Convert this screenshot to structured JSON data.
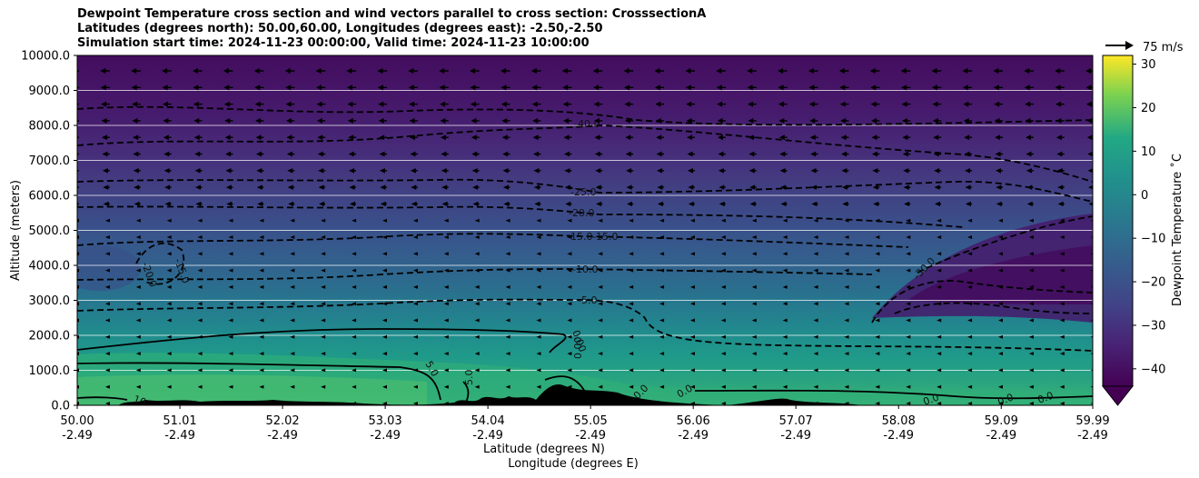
{
  "titles": [
    "Dewpoint Temperature cross section and wind vectors parallel to cross section: CrosssectionA",
    "Latitudes (degrees north): 50.00,60.00, Longitudes (degrees east): -2.50,-2.50",
    "Simulation start time: 2024-11-23 00:00:00, Valid time: 2024-11-23 10:00:00"
  ],
  "quiver_key": "75 m/s",
  "chart_data": {
    "type": "contour",
    "ylabel": "Altitude (meters)",
    "xlabel": "Latitude (degrees N)",
    "xlabel2": "Longitude (degrees E)",
    "ylim": [
      0,
      10000
    ],
    "xlim": [
      50.0,
      59.99
    ],
    "grid": "horizontal",
    "yticks": [
      "0.0",
      "1000.0",
      "2000.0",
      "3000.0",
      "4000.0",
      "5000.0",
      "6000.0",
      "7000.0",
      "8000.0",
      "9000.0",
      "10000.0"
    ],
    "xticks_lat": [
      "50.00",
      "51.01",
      "52.02",
      "53.03",
      "54.04",
      "55.05",
      "56.06",
      "57.07",
      "58.08",
      "59.09",
      "59.99"
    ],
    "xticks_lon": [
      "-2.49",
      "-2.49",
      "-2.49",
      "-2.49",
      "-2.49",
      "-2.49",
      "-2.49",
      "-2.49",
      "-2.49",
      "-2.49",
      "-2.49"
    ],
    "colorbar": {
      "label": "Dewpoint Temperature ˚C",
      "range": [
        -44,
        32
      ],
      "ticks": [
        "30",
        "20",
        "10",
        "0",
        "−10",
        "−20",
        "−30",
        "−40"
      ],
      "extend": "min"
    },
    "contour_labels": [
      "-40.0",
      "-25.0",
      "-20.0",
      "-15.0",
      "-15.0",
      "-10.0",
      "-5.0",
      "0.00",
      "0.00",
      "5.0",
      "5.0",
      "10",
      "-20.0",
      "-15.0",
      "-30.0",
      "0.0",
      "0.0",
      "0.0",
      "0.0",
      "0.0"
    ]
  }
}
